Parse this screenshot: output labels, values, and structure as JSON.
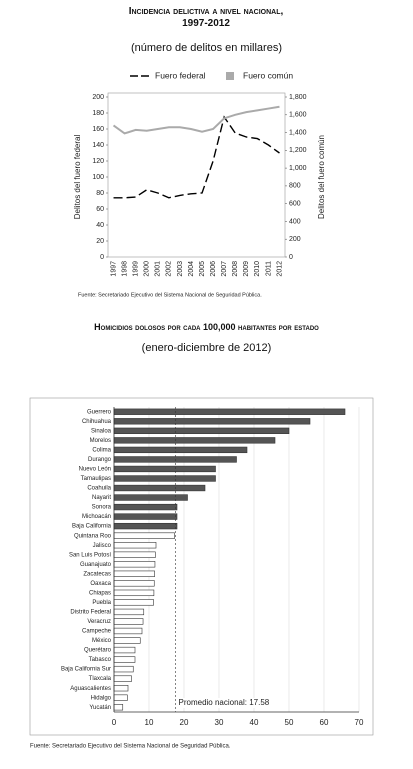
{
  "chart_data": [
    {
      "type": "line",
      "title": "Incidencia delictiva a nivel nacional, 1997-2012",
      "subtitle": "(número de delitos en millares)",
      "y_label": "Delitos del fuero federal",
      "y2_label": "Delitos del fuero común",
      "source": "Fuente: Secretariado Ejecutivo del Sistema Nacional de Seguridad Pública.",
      "categories": [
        "1997",
        "1998",
        "1999",
        "2000",
        "2001",
        "2002",
        "2003",
        "2004",
        "2005",
        "2006",
        "2007",
        "2008",
        "2009",
        "2010",
        "2011",
        "2012"
      ],
      "series": [
        {
          "name": "Fuero federal",
          "color": "#000000",
          "dashed": true,
          "values": [
            74,
            74,
            75,
            84,
            80,
            74,
            77,
            79,
            80,
            120,
            175,
            155,
            150,
            148,
            140,
            130
          ]
        },
        {
          "name": "Fuero común",
          "color": "#aaaaaa",
          "axis": "y2",
          "values": [
            1480,
            1390,
            1430,
            1420,
            1440,
            1460,
            1460,
            1440,
            1410,
            1440,
            1560,
            1600,
            1630,
            1650,
            1670,
            1690
          ]
        }
      ],
      "ylim": [
        0,
        200
      ],
      "yticks": [
        0,
        20,
        40,
        60,
        80,
        100,
        120,
        140,
        160,
        180,
        200
      ],
      "y2lim": [
        0,
        1800
      ],
      "y2ticks": [
        0,
        200,
        400,
        600,
        800,
        {
          "value": 1000,
          "label": "1,000"
        },
        {
          "value": 1200,
          "label": "1,200"
        },
        {
          "value": 1400,
          "label": "1,400"
        },
        {
          "value": 1600,
          "label": "1,600"
        },
        {
          "value": 1800,
          "label": "1,800"
        }
      ],
      "legend": "top"
    },
    {
      "type": "barh",
      "title": "Homicidios dolosos por cada 100,000 habitantes por estado",
      "subtitle": "(enero-diciembre de 2012)",
      "source": "Fuente: Secretariado Ejecutivo del Sistema Nacional de Seguridad Pública.",
      "categories": [
        "Guerrero",
        "Chihuahua",
        "Sinaloa",
        "Morelos",
        "Colima",
        "Durango",
        "Nuevo León",
        "Tamaulipas",
        "Coahuila",
        "Nayarit",
        "Sonora",
        "Michoacán",
        "Baja California",
        "Quintana Roo",
        "Jalisco",
        "San Luis Potosí",
        "Guanajuato",
        "Zacatecas",
        "Oaxaca",
        "Chiapas",
        "Puebla",
        "Distrito Federal",
        "Veracruz",
        "Campeche",
        "México",
        "Querétaro",
        "Tabasco",
        "Baja California Sur",
        "Tlaxcala",
        "Aguascalientes",
        "Hidalgo",
        "Yucatán"
      ],
      "values": [
        66,
        56,
        50,
        46,
        38,
        35,
        29,
        29,
        26,
        21,
        18,
        18,
        18,
        17.3,
        12,
        11.8,
        11.7,
        11.6,
        11.5,
        11.4,
        11.3,
        8.5,
        8.3,
        8,
        7.5,
        6,
        6,
        5.5,
        5,
        4,
        3.8,
        2.5
      ],
      "colors": [
        "#555555",
        "#555555",
        "#555555",
        "#555555",
        "#555555",
        "#555555",
        "#555555",
        "#555555",
        "#555555",
        "#555555",
        "#555555",
        "#555555",
        "#555555",
        "#ffffff",
        "#ffffff",
        "#ffffff",
        "#ffffff",
        "#ffffff",
        "#ffffff",
        "#ffffff",
        "#ffffff",
        "#ffffff",
        "#ffffff",
        "#ffffff",
        "#ffffff",
        "#ffffff",
        "#ffffff",
        "#ffffff",
        "#ffffff",
        "#ffffff",
        "#ffffff",
        "#ffffff"
      ],
      "reference_line": 17.58,
      "annotation": "Promedio nacional: 17.58",
      "xlim": [
        0,
        70
      ],
      "xticks": [
        0,
        10,
        20,
        30,
        40,
        50,
        60,
        70
      ],
      "grid": true
    }
  ]
}
